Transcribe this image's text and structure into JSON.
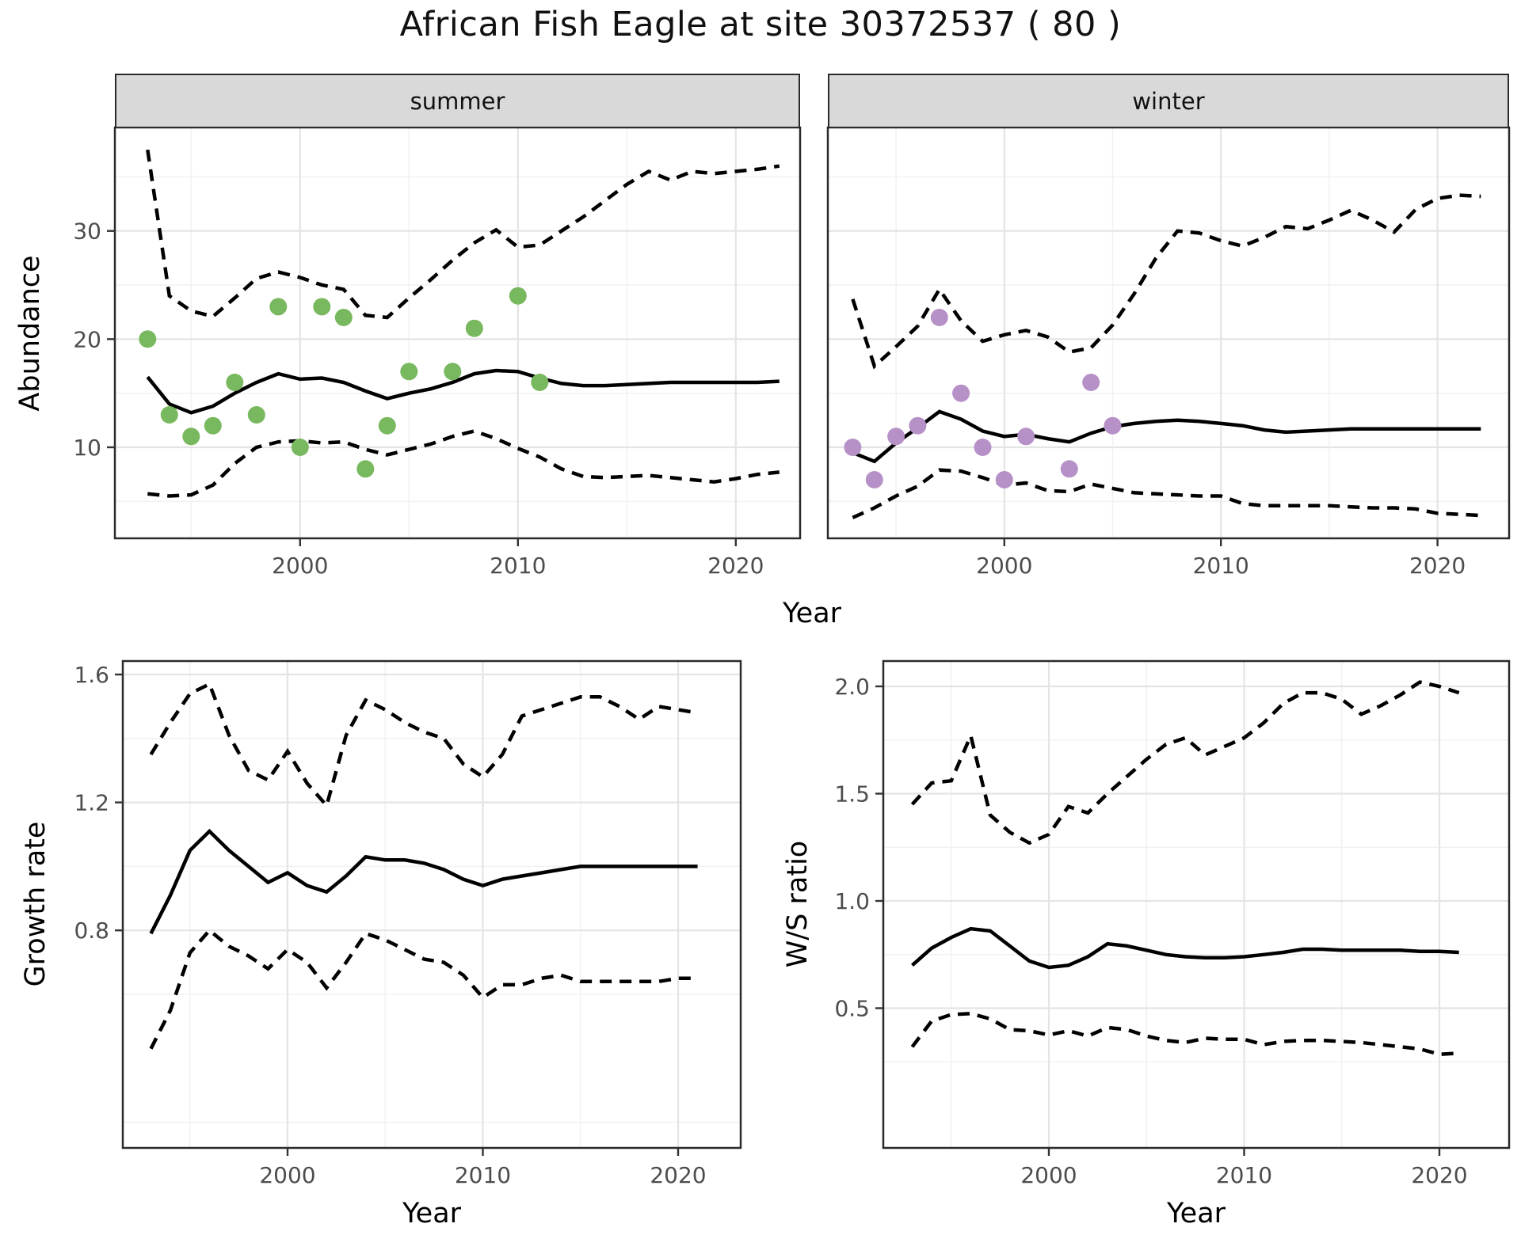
{
  "title": "African Fish Eagle at site 30372537 ( 80 )",
  "colors": {
    "summer_points": "#78b85e",
    "winter_points": "#b691c7",
    "line": "#000000",
    "grid_major": "#e4e4e4",
    "grid_minor": "#f2f2f2",
    "panel_border": "#2a2a2a",
    "strip_bg": "#d9d9d9",
    "tick_label": "#4d4d4d"
  },
  "chart_data": {
    "type": "line",
    "title": "African Fish Eagle at site 30372537 ( 80 )",
    "xlabel_shared_top": "Year",
    "legend": "none",
    "facets": [
      "summer",
      "winter"
    ],
    "panels": [
      {
        "key": "summer",
        "strip_label": "summer",
        "ylabel": "Abundance",
        "xlabel": "Year",
        "x_tick_labels": [
          "2000",
          "2010",
          "2020"
        ],
        "x_tick_values": [
          2000,
          2010,
          2020
        ],
        "x_minor": [
          1995,
          2005,
          2015
        ],
        "y_tick_labels": [
          "10",
          "20",
          "30"
        ],
        "y_tick_values": [
          10,
          20,
          30
        ],
        "y_minor": [
          5,
          15,
          25,
          35
        ],
        "years": [
          1993,
          1994,
          1995,
          1996,
          1997,
          1998,
          1999,
          2000,
          2001,
          2002,
          2003,
          2004,
          2005,
          2006,
          2007,
          2008,
          2009,
          2010,
          2011,
          2012,
          2013,
          2014,
          2015,
          2016,
          2017,
          2018,
          2019,
          2020,
          2021,
          2022
        ],
        "upper_ci": [
          37.5,
          24.0,
          22.6,
          22.1,
          23.8,
          25.6,
          26.2,
          25.7,
          25.0,
          24.6,
          22.2,
          22.0,
          23.8,
          25.5,
          27.3,
          28.9,
          30.1,
          28.5,
          28.7,
          30.0,
          31.3,
          32.8,
          34.3,
          35.5,
          34.7,
          35.5,
          35.3,
          35.5,
          35.7,
          36.0
        ],
        "median": [
          16.5,
          14.0,
          13.2,
          13.8,
          15.0,
          16.0,
          16.8,
          16.3,
          16.4,
          16.0,
          15.2,
          14.5,
          15.0,
          15.4,
          16.0,
          16.8,
          17.1,
          17.0,
          16.4,
          15.9,
          15.7,
          15.7,
          15.8,
          15.9,
          16.0,
          16.0,
          16.0,
          16.0,
          16.0,
          16.1
        ],
        "lower_ci": [
          5.7,
          5.5,
          5.6,
          6.5,
          8.5,
          10.0,
          10.5,
          10.6,
          10.4,
          10.5,
          9.8,
          9.3,
          9.8,
          10.3,
          11.0,
          11.5,
          10.8,
          9.9,
          9.1,
          8.0,
          7.3,
          7.2,
          7.3,
          7.4,
          7.2,
          7.0,
          6.8,
          7.1,
          7.5,
          7.7
        ],
        "points": {
          "x": [
            1993,
            1994,
            1995,
            1996,
            1997,
            1998,
            1999,
            2000,
            2001,
            2002,
            2003,
            2004,
            2005,
            2007,
            2008,
            2010,
            2011
          ],
          "y": [
            20,
            13,
            11,
            12,
            16,
            13,
            23,
            10,
            23,
            22,
            8,
            12,
            17,
            17,
            21,
            24,
            16
          ]
        }
      },
      {
        "key": "winter",
        "strip_label": "winter",
        "ylabel": "",
        "xlabel": "Year",
        "x_tick_labels": [
          "2000",
          "2010",
          "2020"
        ],
        "x_tick_values": [
          2000,
          2010,
          2020
        ],
        "x_minor": [
          1995,
          2005,
          2015
        ],
        "y_tick_labels": [],
        "y_tick_values": [
          10,
          20,
          30
        ],
        "y_minor": [
          5,
          15,
          25,
          35
        ],
        "years": [
          1993,
          1994,
          1995,
          1996,
          1997,
          1998,
          1999,
          2000,
          2001,
          2002,
          2003,
          2004,
          2005,
          2006,
          2007,
          2008,
          2009,
          2010,
          2011,
          2012,
          2013,
          2014,
          2015,
          2016,
          2017,
          2018,
          2019,
          2020,
          2021,
          2022
        ],
        "upper_ci": [
          23.7,
          17.5,
          19.3,
          21.2,
          24.6,
          21.7,
          19.8,
          20.4,
          20.8,
          20.2,
          18.8,
          19.2,
          21.3,
          24.2,
          27.5,
          30.0,
          29.8,
          29.1,
          28.6,
          29.4,
          30.4,
          30.2,
          31.0,
          31.9,
          31.0,
          29.9,
          32.0,
          33.0,
          33.3,
          33.2
        ],
        "median": [
          9.5,
          8.7,
          10.4,
          11.8,
          13.3,
          12.6,
          11.5,
          11.0,
          11.2,
          10.8,
          10.5,
          11.3,
          11.9,
          12.2,
          12.4,
          12.5,
          12.4,
          12.2,
          12.0,
          11.6,
          11.4,
          11.5,
          11.6,
          11.7,
          11.7,
          11.7,
          11.7,
          11.7,
          11.7,
          11.7
        ],
        "lower_ci": [
          3.5,
          4.4,
          5.5,
          6.4,
          7.9,
          7.8,
          7.2,
          6.5,
          6.7,
          6.0,
          5.9,
          6.6,
          6.2,
          5.8,
          5.7,
          5.6,
          5.5,
          5.5,
          4.8,
          4.6,
          4.6,
          4.6,
          4.6,
          4.5,
          4.4,
          4.4,
          4.3,
          3.9,
          3.8,
          3.7
        ],
        "points": {
          "x": [
            1993,
            1994,
            1995,
            1996,
            1997,
            1998,
            1999,
            2000,
            2001,
            2003,
            2004,
            2005
          ],
          "y": [
            10,
            7,
            11,
            12,
            22,
            15,
            10,
            7,
            11,
            8,
            16,
            12
          ]
        }
      },
      {
        "key": "growth",
        "strip_label": "",
        "ylabel": "Growth rate",
        "xlabel": "Year",
        "x_tick_labels": [
          "2000",
          "2010",
          "2020"
        ],
        "x_tick_values": [
          2000,
          2010,
          2020
        ],
        "x_minor": [
          1995,
          2005,
          2015
        ],
        "y_tick_labels": [
          "0.8",
          "1.2",
          "1.6"
        ],
        "y_tick_values": [
          0.8,
          1.2,
          1.6
        ],
        "y_minor": [
          0.2,
          0.6,
          1.0,
          1.4
        ],
        "years": [
          1993,
          1994,
          1995,
          1996,
          1997,
          1998,
          1999,
          2000,
          2001,
          2002,
          2003,
          2004,
          2005,
          2006,
          2007,
          2008,
          2009,
          2010,
          2011,
          2012,
          2013,
          2014,
          2015,
          2016,
          2017,
          2018,
          2019,
          2020,
          2021
        ],
        "upper_ci": [
          1.35,
          1.45,
          1.54,
          1.57,
          1.41,
          1.3,
          1.27,
          1.36,
          1.26,
          1.19,
          1.41,
          1.52,
          1.49,
          1.45,
          1.42,
          1.4,
          1.32,
          1.28,
          1.35,
          1.47,
          1.49,
          1.51,
          1.53,
          1.53,
          1.5,
          1.46,
          1.5,
          1.49,
          1.48
        ],
        "median": [
          0.79,
          0.91,
          1.05,
          1.11,
          1.05,
          1.0,
          0.95,
          0.98,
          0.94,
          0.92,
          0.97,
          1.03,
          1.02,
          1.02,
          1.01,
          0.99,
          0.96,
          0.94,
          0.96,
          0.97,
          0.98,
          0.99,
          1.0,
          1.0,
          1.0,
          1.0,
          1.0,
          1.0,
          1.0
        ],
        "lower_ci": [
          0.43,
          0.55,
          0.73,
          0.8,
          0.75,
          0.72,
          0.68,
          0.74,
          0.7,
          0.62,
          0.7,
          0.79,
          0.77,
          0.74,
          0.71,
          0.7,
          0.66,
          0.59,
          0.63,
          0.63,
          0.65,
          0.66,
          0.64,
          0.64,
          0.64,
          0.64,
          0.64,
          0.65,
          0.65
        ],
        "points": null
      },
      {
        "key": "ws_ratio",
        "strip_label": "",
        "ylabel": "W/S ratio",
        "xlabel": "Year",
        "x_tick_labels": [
          "2000",
          "2010",
          "2020"
        ],
        "x_tick_values": [
          2000,
          2010,
          2020
        ],
        "x_minor": [
          1995,
          2005,
          2015
        ],
        "y_tick_labels": [
          "0.5",
          "1.0",
          "1.5",
          "2.0"
        ],
        "y_tick_values": [
          0.5,
          1.0,
          1.5,
          2.0
        ],
        "y_minor": [
          0.25,
          0.75,
          1.25,
          1.75
        ],
        "years": [
          1993,
          1994,
          1995,
          1996,
          1997,
          1998,
          1999,
          2000,
          2001,
          2002,
          2003,
          2004,
          2005,
          2006,
          2007,
          2008,
          2009,
          2010,
          2011,
          2012,
          2013,
          2014,
          2015,
          2016,
          2017,
          2018,
          2019,
          2020,
          2021
        ],
        "upper_ci": [
          1.45,
          1.55,
          1.56,
          1.77,
          1.4,
          1.32,
          1.27,
          1.31,
          1.44,
          1.41,
          1.5,
          1.58,
          1.66,
          1.73,
          1.76,
          1.68,
          1.72,
          1.76,
          1.83,
          1.92,
          1.97,
          1.97,
          1.94,
          1.87,
          1.91,
          1.96,
          2.02,
          2.0,
          1.97
        ],
        "median": [
          0.7,
          0.78,
          0.83,
          0.87,
          0.86,
          0.79,
          0.72,
          0.69,
          0.7,
          0.74,
          0.8,
          0.79,
          0.77,
          0.75,
          0.74,
          0.735,
          0.735,
          0.74,
          0.75,
          0.76,
          0.775,
          0.775,
          0.77,
          0.77,
          0.77,
          0.77,
          0.765,
          0.765,
          0.76
        ],
        "lower_ci": [
          0.32,
          0.44,
          0.47,
          0.475,
          0.45,
          0.4,
          0.395,
          0.375,
          0.395,
          0.37,
          0.41,
          0.4,
          0.37,
          0.35,
          0.34,
          0.36,
          0.355,
          0.355,
          0.33,
          0.345,
          0.35,
          0.35,
          0.345,
          0.34,
          0.33,
          0.32,
          0.31,
          0.285,
          0.29
        ],
        "points": null
      }
    ],
    "series_styles": [
      "dashed upper 95% CI",
      "solid median",
      "dashed lower 95% CI"
    ]
  }
}
